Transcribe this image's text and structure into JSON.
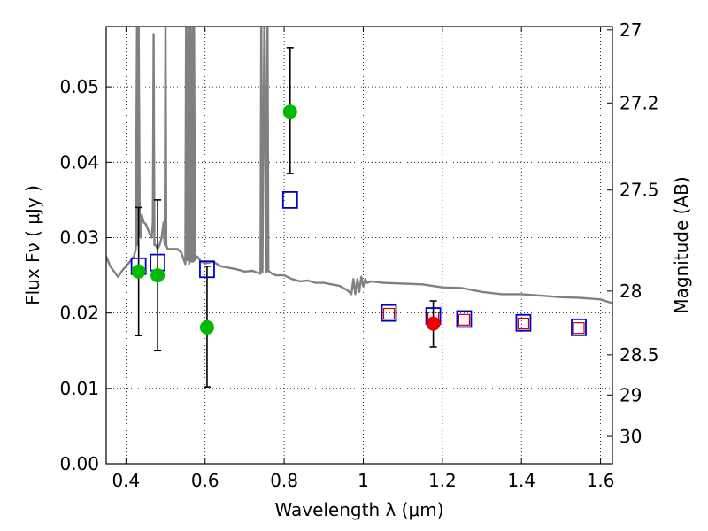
{
  "chart_data": {
    "type": "scatter",
    "title": "",
    "xlabel": "Wavelength  λ (μm)",
    "ylabel": "Flux  Fν  ( μJy )",
    "y2label": "Magnitude (AB)",
    "xlim": [
      0.35,
      1.63
    ],
    "ylim": [
      0.0,
      0.058
    ],
    "grid": true,
    "x_ticks": [
      0.4,
      0.6,
      0.8,
      1.0,
      1.2,
      1.4,
      1.6
    ],
    "x_tick_labels": [
      "0.4",
      "0.6",
      "0.8",
      "1",
      "1.2",
      "1.4",
      "1.6"
    ],
    "y_ticks": [
      0.0,
      0.01,
      0.02,
      0.03,
      0.04,
      0.05
    ],
    "y_tick_labels": [
      "0.00",
      "0.01",
      "0.02",
      "0.03",
      "0.04",
      "0.05"
    ],
    "y2_ticks": [
      27,
      27.2,
      27.5,
      28,
      28.5,
      29,
      30
    ],
    "y2_tick_labels": [
      "27",
      "27.2",
      "27.5",
      "28",
      "28.5",
      "29",
      "30"
    ],
    "colors": {
      "model": "#808080",
      "green": "#00bb00",
      "red": "#ee0000",
      "blue": "#0000cc",
      "pink": "#cc0000",
      "error": "#000000"
    },
    "series": [
      {
        "name": "model spectrum",
        "kind": "line",
        "x": [
          0.35,
          0.36,
          0.38,
          0.39,
          0.4,
          0.41,
          0.42,
          0.425,
          0.428,
          0.43,
          0.432,
          0.435,
          0.437,
          0.44,
          0.445,
          0.45,
          0.46,
          0.465,
          0.468,
          0.47,
          0.472,
          0.475,
          0.48,
          0.485,
          0.49,
          0.495,
          0.498,
          0.5,
          0.502,
          0.505,
          0.51,
          0.52,
          0.53,
          0.54,
          0.55,
          0.552,
          0.555,
          0.558,
          0.56,
          0.562,
          0.565,
          0.568,
          0.57,
          0.572,
          0.575,
          0.58,
          0.59,
          0.6,
          0.62,
          0.64,
          0.66,
          0.68,
          0.7,
          0.72,
          0.74,
          0.742,
          0.745,
          0.75,
          0.755,
          0.758,
          0.76,
          0.77,
          0.78,
          0.8,
          0.82,
          0.84,
          0.86,
          0.88,
          0.9,
          0.92,
          0.94,
          0.96,
          0.97,
          0.975,
          0.98,
          0.985,
          0.99,
          0.995,
          1.0,
          1.005,
          1.01,
          1.02,
          1.05,
          1.1,
          1.15,
          1.2,
          1.25,
          1.3,
          1.35,
          1.4,
          1.45,
          1.5,
          1.55,
          1.6,
          1.63
        ],
        "y": [
          0.0275,
          0.0262,
          0.0248,
          0.0256,
          0.0262,
          0.0268,
          0.0275,
          0.0285,
          0.06,
          0.029,
          0.06,
          0.031,
          0.03,
          0.033,
          0.032,
          0.0318,
          0.0305,
          0.03,
          0.032,
          0.057,
          0.029,
          0.029,
          0.0285,
          0.029,
          0.03,
          0.032,
          0.029,
          0.06,
          0.029,
          0.0285,
          0.0285,
          0.0285,
          0.0285,
          0.028,
          0.0265,
          0.06,
          0.027,
          0.06,
          0.0265,
          0.06,
          0.0268,
          0.06,
          0.0268,
          0.06,
          0.027,
          0.0275,
          0.0268,
          0.0266,
          0.0268,
          0.0262,
          0.026,
          0.0258,
          0.0255,
          0.0256,
          0.0252,
          0.06,
          0.0254,
          0.06,
          0.0254,
          0.06,
          0.0256,
          0.0252,
          0.025,
          0.025,
          0.0245,
          0.0242,
          0.0243,
          0.024,
          0.024,
          0.0238,
          0.0236,
          0.023,
          0.0225,
          0.0245,
          0.0225,
          0.0245,
          0.0228,
          0.0248,
          0.0235,
          0.0245,
          0.024,
          0.0242,
          0.024,
          0.0239,
          0.0238,
          0.0234,
          0.0233,
          0.0228,
          0.0225,
          0.0225,
          0.0223,
          0.0221,
          0.022,
          0.0218,
          0.0213
        ]
      },
      {
        "name": "photometry (green)",
        "kind": "points",
        "x": [
          0.432,
          0.48,
          0.605,
          0.815
        ],
        "y": [
          0.0255,
          0.025,
          0.0181,
          0.0467
        ],
        "yerr_low": [
          0.0085,
          0.01,
          0.0079,
          0.0082
        ],
        "yerr_high": [
          0.0085,
          0.01,
          0.0081,
          0.0085
        ]
      },
      {
        "name": "photometry (red)",
        "kind": "points",
        "x": [
          1.177
        ],
        "y": [
          0.0186
        ],
        "yerr_low": [
          0.0031
        ],
        "yerr_high": [
          0.003
        ]
      },
      {
        "name": "model fluxes (blue squares)",
        "kind": "squares",
        "x": [
          0.432,
          0.48,
          0.605,
          0.815,
          1.065,
          1.177,
          1.255,
          1.405,
          1.545
        ],
        "y": [
          0.0262,
          0.0267,
          0.0258,
          0.035,
          0.02,
          0.0196,
          0.0192,
          0.0187,
          0.0181
        ]
      },
      {
        "name": "model fluxes (red squares)",
        "kind": "small-squares",
        "x": [
          1.065,
          1.177,
          1.255,
          1.405,
          1.545
        ],
        "y": [
          0.0199,
          0.0194,
          0.0191,
          0.0186,
          0.018
        ]
      }
    ]
  }
}
